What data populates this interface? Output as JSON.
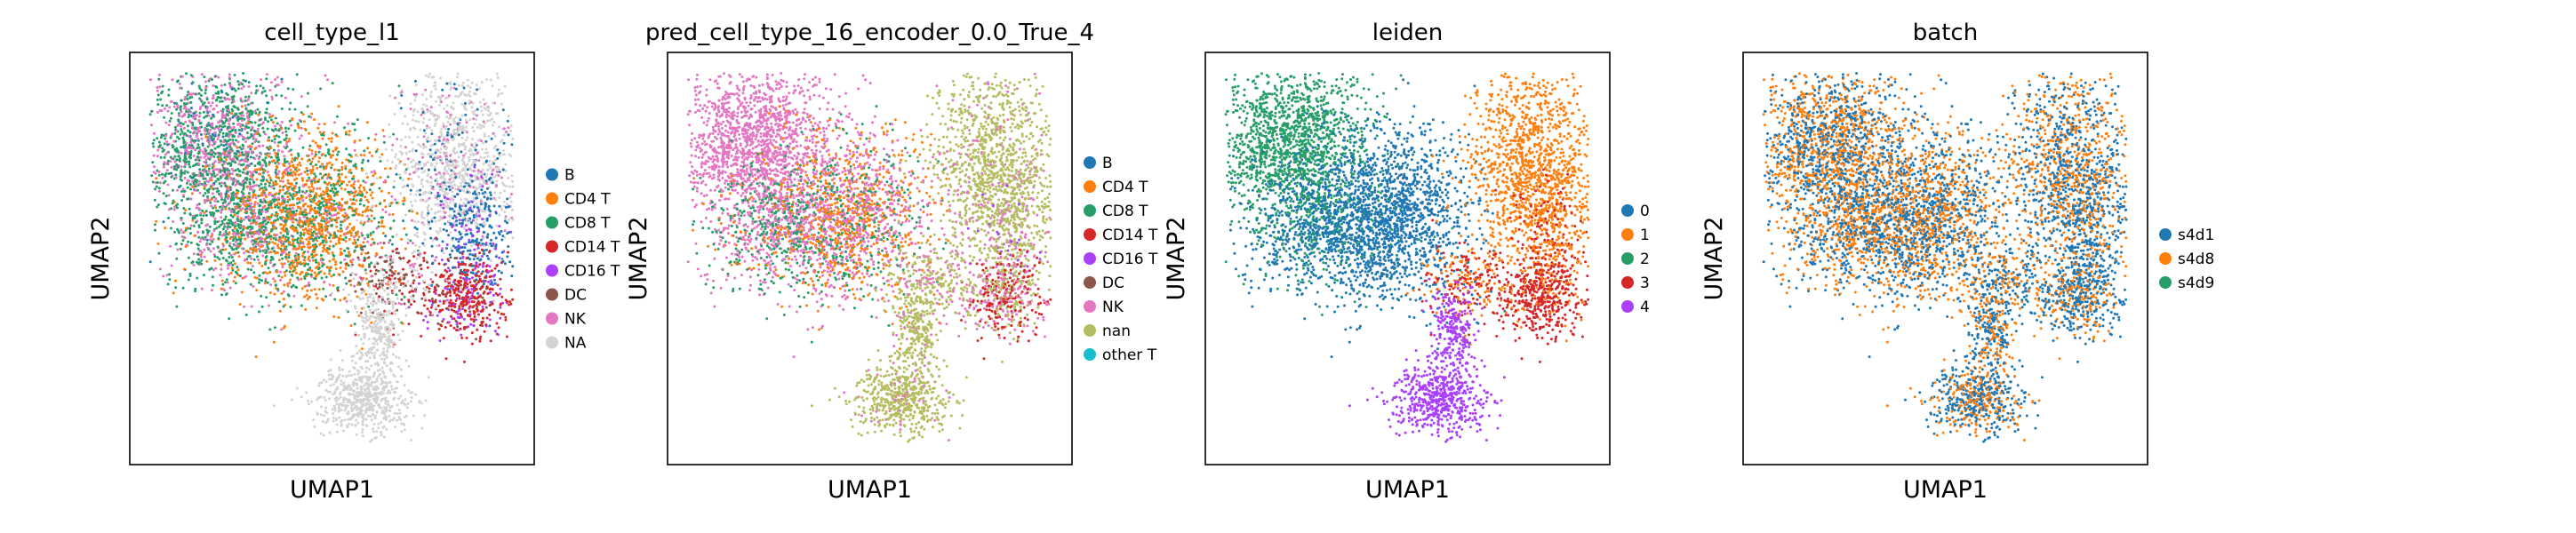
{
  "chart_data": [
    {
      "type": "scatter",
      "title": "cell_type_l1",
      "xlabel": "UMAP1",
      "ylabel": "UMAP2",
      "legend_position": "right",
      "categories": [
        "B",
        "CD4 T",
        "CD8 T",
        "CD14 T",
        "CD16 T",
        "DC",
        "NK",
        "NA"
      ],
      "colors": [
        "#1f77b4",
        "#ff7f0e",
        "#279e68",
        "#d62728",
        "#aa40fc",
        "#8c564b",
        "#e377c2",
        "#d3d3d3"
      ]
    },
    {
      "type": "scatter",
      "title": "pred_cell_type_16_encoder_0.0_True_4",
      "xlabel": "UMAP1",
      "ylabel": "UMAP2",
      "legend_position": "right",
      "categories": [
        "B",
        "CD4 T",
        "CD8 T",
        "CD14 T",
        "CD16 T",
        "DC",
        "NK",
        "nan",
        "other T"
      ],
      "colors": [
        "#1f77b4",
        "#ff7f0e",
        "#279e68",
        "#d62728",
        "#aa40fc",
        "#8c564b",
        "#e377c2",
        "#b5bd61",
        "#17becf"
      ]
    },
    {
      "type": "scatter",
      "title": "leiden",
      "xlabel": "UMAP1",
      "ylabel": "UMAP2",
      "legend_position": "right",
      "categories": [
        "0",
        "1",
        "2",
        "3",
        "4"
      ],
      "colors": [
        "#1f77b4",
        "#ff7f0e",
        "#279e68",
        "#d62728",
        "#aa40fc"
      ]
    },
    {
      "type": "scatter",
      "title": "batch",
      "xlabel": "UMAP1",
      "ylabel": "UMAP2",
      "legend_position": "right",
      "categories": [
        "s4d1",
        "s4d8",
        "s4d9"
      ],
      "colors": [
        "#1f77b4",
        "#ff7f0e",
        "#279e68"
      ]
    }
  ]
}
